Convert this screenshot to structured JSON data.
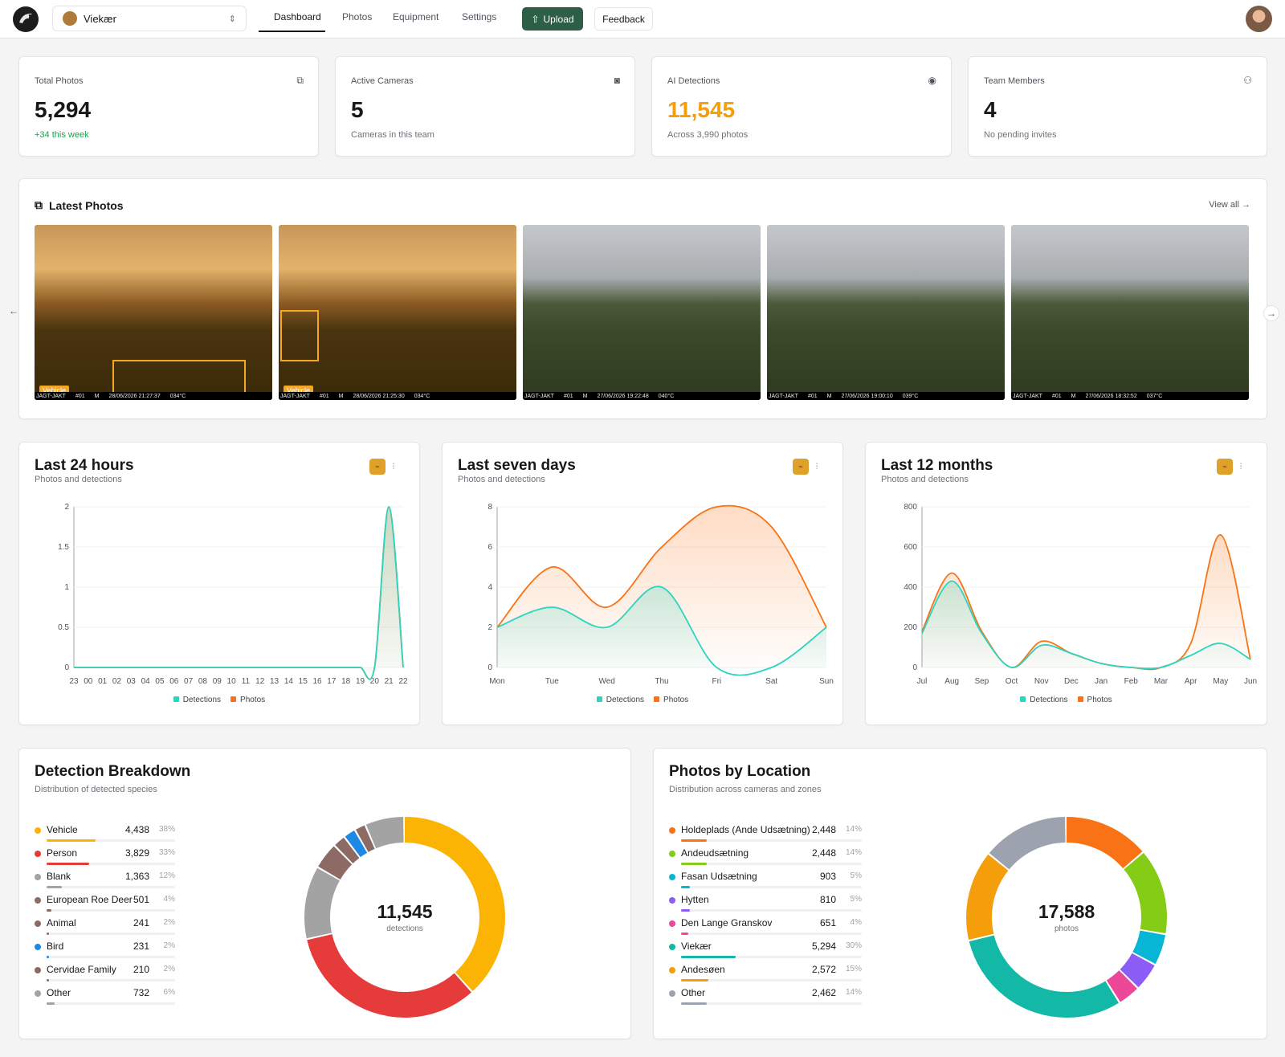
{
  "header": {
    "team_name": "Viekær",
    "nav": [
      {
        "label": "Dashboard",
        "active": true
      },
      {
        "label": "Photos",
        "active": false
      },
      {
        "label": "Equipment",
        "active": false
      },
      {
        "label": "Settings",
        "active": false
      }
    ],
    "upload_label": "Upload",
    "feedback_label": "Feedback"
  },
  "stats": [
    {
      "label": "Total Photos",
      "value": "5,294",
      "sub": "+34 this week",
      "icon": "photos-icon",
      "value_color": "#18181b",
      "sub_color": "#16a34a"
    },
    {
      "label": "Active Cameras",
      "value": "5",
      "sub": "Cameras in this team",
      "icon": "camera-icon",
      "value_color": "#18181b",
      "sub_color": "#71717a"
    },
    {
      "label": "AI Detections",
      "value": "11,545",
      "sub": "Across 3,990 photos",
      "icon": "eye-icon",
      "value_color": "#f59e0b",
      "sub_color": "#71717a"
    },
    {
      "label": "Team Members",
      "value": "4",
      "sub": "No pending invites",
      "icon": "users-icon",
      "value_color": "#18181b",
      "sub_color": "#71717a"
    }
  ],
  "latest_photos": {
    "title": "Latest Photos",
    "view_all": "View all →",
    "photos": [
      {
        "scene": "sunset",
        "detection": "Vehicle",
        "strip": [
          "JAGT-JAKT",
          "#01",
          "M",
          "28/06/2026 21:27:37",
          "034°C"
        ]
      },
      {
        "scene": "sunset",
        "detection": "Vehicle",
        "strip": [
          "JAGT-JAKT",
          "#01",
          "M",
          "28/06/2026 21:25:30",
          "034°C"
        ]
      },
      {
        "scene": "day",
        "detection": "",
        "strip": [
          "JAGT-JAKT",
          "#01",
          "M",
          "27/06/2026 19:22:48",
          "040°C"
        ]
      },
      {
        "scene": "day",
        "detection": "",
        "strip": [
          "JAGT-JAKT",
          "#01",
          "M",
          "27/06/2026 19:00:10",
          "039°C"
        ]
      },
      {
        "scene": "day",
        "detection": "",
        "strip": [
          "JAGT-JAKT",
          "#01",
          "M",
          "27/06/2026 18:32:52",
          "037°C"
        ]
      }
    ]
  },
  "colors": {
    "detections": "#2dd4bf",
    "photos": "#f97316",
    "accent_button": "#2e5e46"
  },
  "chart_data": [
    {
      "type": "area",
      "title": "Last 24 hours",
      "subtitle": "Photos and detections",
      "categories": [
        "23",
        "00",
        "01",
        "02",
        "03",
        "04",
        "05",
        "06",
        "07",
        "08",
        "09",
        "10",
        "11",
        "12",
        "13",
        "14",
        "15",
        "16",
        "17",
        "18",
        "19",
        "20",
        "21",
        "22"
      ],
      "series": [
        {
          "name": "Detections",
          "values": [
            0,
            0,
            0,
            0,
            0,
            0,
            0,
            0,
            0,
            0,
            0,
            0,
            0,
            0,
            0,
            0,
            0,
            0,
            0,
            0,
            0,
            0,
            2,
            0
          ]
        },
        {
          "name": "Photos",
          "values": [
            0,
            0,
            0,
            0,
            0,
            0,
            0,
            0,
            0,
            0,
            0,
            0,
            0,
            0,
            0,
            0,
            0,
            0,
            0,
            0,
            0,
            0,
            2,
            0
          ]
        }
      ],
      "ylim": [
        0,
        2
      ],
      "yticks": [
        "0",
        "0.5",
        "1",
        "1.5",
        "2"
      ],
      "legend": "bottom-center"
    },
    {
      "type": "area",
      "title": "Last seven days",
      "subtitle": "Photos and detections",
      "categories": [
        "Mon",
        "Tue",
        "Wed",
        "Thu",
        "Fri",
        "Sat",
        "Sun"
      ],
      "series": [
        {
          "name": "Detections",
          "values": [
            2,
            3,
            2,
            4,
            0,
            0,
            2
          ]
        },
        {
          "name": "Photos",
          "values": [
            2,
            5,
            3,
            6,
            8,
            7,
            2
          ]
        }
      ],
      "ylim": [
        0,
        8
      ],
      "yticks": [
        "0",
        "2",
        "4",
        "6",
        "8"
      ],
      "legend": "bottom-center"
    },
    {
      "type": "area",
      "title": "Last 12 months",
      "subtitle": "Photos and detections",
      "categories": [
        "Jul",
        "Aug",
        "Sep",
        "Oct",
        "Nov",
        "Dec",
        "Jan",
        "Feb",
        "Mar",
        "Apr",
        "May",
        "Jun"
      ],
      "series": [
        {
          "name": "Detections",
          "values": [
            170,
            430,
            170,
            0,
            110,
            70,
            20,
            0,
            0,
            60,
            120,
            40
          ]
        },
        {
          "name": "Photos",
          "values": [
            180,
            470,
            180,
            0,
            130,
            70,
            20,
            0,
            0,
            120,
            660,
            40
          ]
        }
      ],
      "ylim": [
        0,
        800
      ],
      "yticks": [
        "0",
        "200",
        "400",
        "600",
        "800"
      ],
      "legend": "bottom-center"
    },
    {
      "type": "pie",
      "title": "Detection Breakdown",
      "subtitle": "Distribution of detected species",
      "center_value": "11,545",
      "center_label": "detections",
      "items": [
        {
          "name": "Vehicle",
          "value": 4438,
          "value_text": "4,438",
          "pct": "38%",
          "color": "#fbb404"
        },
        {
          "name": "Person",
          "value": 3829,
          "value_text": "3,829",
          "pct": "33%",
          "color": "#e53b3b"
        },
        {
          "name": "Blank",
          "value": 1363,
          "value_text": "1,363",
          "pct": "12%",
          "color": "#a3a3a3"
        },
        {
          "name": "European Roe Deer",
          "value": 501,
          "value_text": "501",
          "pct": "4%",
          "color": "#8d6a64"
        },
        {
          "name": "Animal",
          "value": 241,
          "value_text": "241",
          "pct": "2%",
          "color": "#8d6a64"
        },
        {
          "name": "Bird",
          "value": 231,
          "value_text": "231",
          "pct": "2%",
          "color": "#1e88e5"
        },
        {
          "name": "Cervidae Family",
          "value": 210,
          "value_text": "210",
          "pct": "2%",
          "color": "#8d6a64"
        },
        {
          "name": "Other",
          "value": 732,
          "value_text": "732",
          "pct": "6%",
          "color": "#a3a3a3"
        }
      ]
    },
    {
      "type": "pie",
      "title": "Photos by Location",
      "subtitle": "Distribution across cameras and zones",
      "center_value": "17,588",
      "center_label": "photos",
      "items": [
        {
          "name": "Holdeplads (Ande Udsætning)",
          "value": 2448,
          "value_text": "2,448",
          "pct": "14%",
          "color": "#f97316"
        },
        {
          "name": "Andeudsætning",
          "value": 2448,
          "value_text": "2,448",
          "pct": "14%",
          "color": "#84cc16"
        },
        {
          "name": "Fasan Udsætning",
          "value": 903,
          "value_text": "903",
          "pct": "5%",
          "color": "#06b6d4"
        },
        {
          "name": "Hytten",
          "value": 810,
          "value_text": "810",
          "pct": "5%",
          "color": "#8b5cf6"
        },
        {
          "name": "Den Lange Granskov",
          "value": 651,
          "value_text": "651",
          "pct": "4%",
          "color": "#ec4899"
        },
        {
          "name": "Viekær",
          "value": 5294,
          "value_text": "5,294",
          "pct": "30%",
          "color": "#14b8a6"
        },
        {
          "name": "Andesøen",
          "value": 2572,
          "value_text": "2,572",
          "pct": "15%",
          "color": "#f59e0b"
        },
        {
          "name": "Other",
          "value": 2462,
          "value_text": "2,462",
          "pct": "14%",
          "color": "#9ca3af"
        }
      ]
    }
  ]
}
